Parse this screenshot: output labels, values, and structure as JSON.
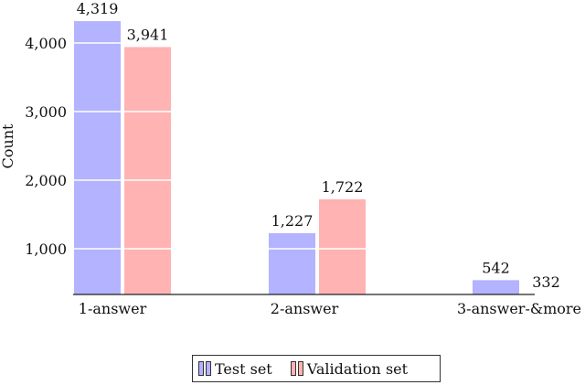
{
  "chart_data": {
    "type": "bar",
    "title": "",
    "xlabel": "",
    "ylabel": "Count",
    "categories": [
      "1-answer",
      "2-answer",
      "3-answer-&more"
    ],
    "series": [
      {
        "name": "Test set",
        "color": "#b3b3ff",
        "values": [
          4319,
          1227,
          542
        ]
      },
      {
        "name": "Validation set",
        "color": "#ffb3b3",
        "values": [
          3941,
          1722,
          332
        ]
      }
    ],
    "yticks": [
      1000,
      2000,
      3000,
      4000
    ],
    "ytick_labels": [
      "1,000",
      "2,000",
      "3,000",
      "4,000"
    ],
    "value_labels": [
      [
        "4,319",
        "1,227",
        "542"
      ],
      [
        "3,941",
        "1,722",
        "332"
      ]
    ],
    "ylim": [
      333,
      4400
    ],
    "grid": "horizontal (white lines over bars)",
    "legend_position": "bottom center"
  },
  "legend": {
    "items": [
      {
        "label": "Test set"
      },
      {
        "label": "Validation set"
      }
    ]
  }
}
